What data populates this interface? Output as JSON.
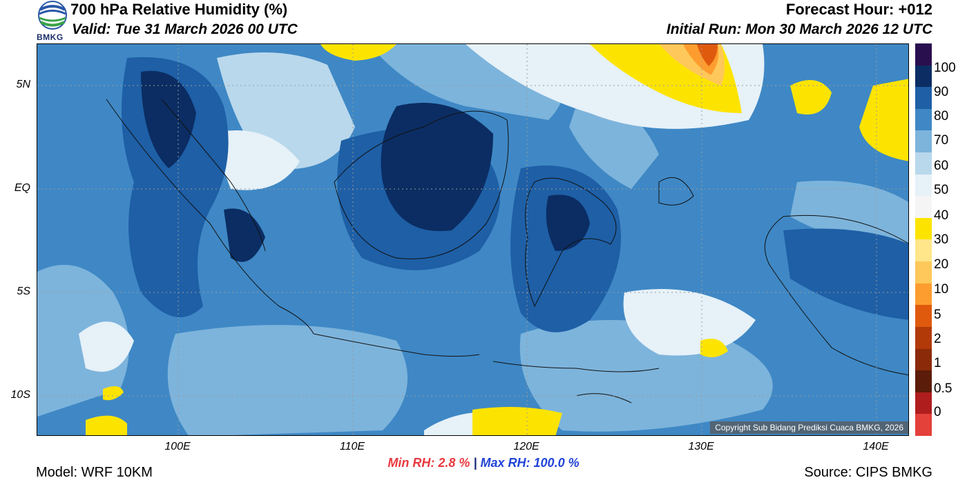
{
  "header": {
    "title": "700 hPa Relative Humidity (%)",
    "valid": "Valid: Tue 31 March 2026 00 UTC",
    "forecast_hour": "Forecast Hour: +012",
    "initial_run": "Initial Run: Mon 30 March 2026 12 UTC",
    "logo_text": "BMKG"
  },
  "map": {
    "lat_labels": [
      "5N",
      "EQ",
      "5S",
      "10S"
    ],
    "lon_labels": [
      "100E",
      "110E",
      "120E",
      "130E",
      "140E"
    ],
    "copyright": "Copyright Sub Bidang Prediksi Cuaca BMKG, 2026"
  },
  "colorbar": {
    "labels": [
      "100",
      "90",
      "80",
      "70",
      "60",
      "50",
      "40",
      "30",
      "20",
      "10",
      "5",
      "2",
      "1",
      "0.5",
      "0"
    ],
    "colors": [
      "#2a0f4e",
      "#0b2d63",
      "#1e5fa6",
      "#3f88c5",
      "#7db4dc",
      "#b9d8ec",
      "#e6f1f8",
      "#f5f5f5",
      "#fde400",
      "#ffe68a",
      "#fec85a",
      "#fe9d2f",
      "#e05a0d",
      "#b23a08",
      "#8a2a08",
      "#5c1c0a",
      "#b01d1d",
      "#e3413a"
    ]
  },
  "stats": {
    "min_label": "Min RH:",
    "min_value": "2.8 %",
    "separator": "|",
    "max_label": "Max RH:",
    "max_value": "100.0 %"
  },
  "footer": {
    "model": "Model: WRF 10KM",
    "source": "Source: CIPS BMKG"
  }
}
